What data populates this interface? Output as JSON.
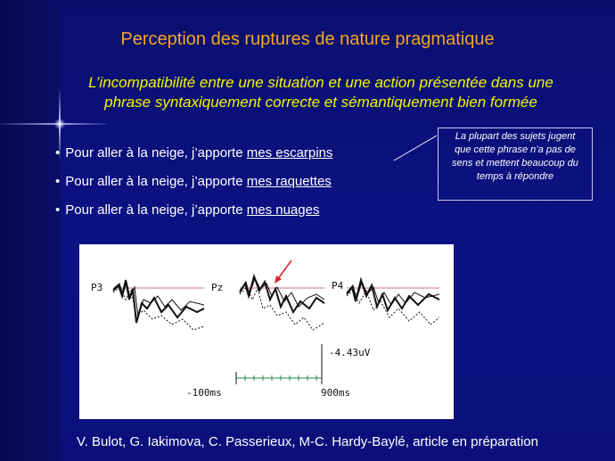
{
  "title": "Perception des ruptures de nature pragmatique",
  "subtitle_line1": "L’incompatibilité entre une situation et une action présentée dans une",
  "subtitle_line2": "phrase syntaxiquement correcte et sémantiquement bien formée",
  "bullets": [
    {
      "prefix": "Pour aller à la neige, j’apporte ",
      "underlined": "mes escarpins"
    },
    {
      "prefix": "Pour aller à la neige, j’apporte ",
      "underlined": "mes raquettes"
    },
    {
      "prefix": "Pour aller à la neige, j’apporte ",
      "underlined": "mes nuages"
    }
  ],
  "note": {
    "line1": "La plupart des sujets jugent",
    "line2": "que cette phrase n’a pas de",
    "line3": "sens et mettent beaucoup du",
    "line4": "temps à répondre"
  },
  "figure": {
    "electrodes": [
      "P3",
      "Pz",
      "P4"
    ],
    "amplitude_label": "-4.43uV",
    "time_start": "-100ms",
    "time_end": "900ms",
    "arrow_color": "#e02020"
  },
  "credit": "V. Bulot, G. Iakimova, C. Passerieux, M-C. Hardy-Baylé, article en préparation"
}
